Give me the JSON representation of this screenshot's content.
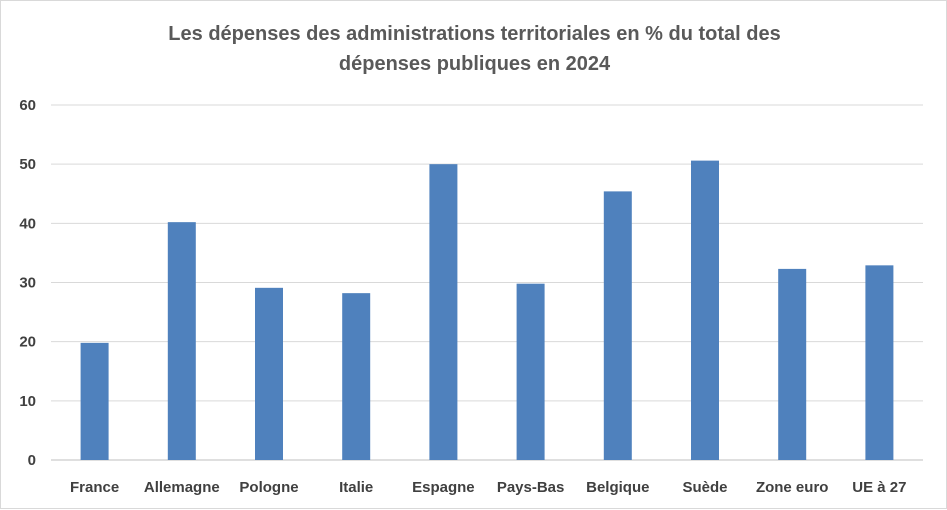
{
  "chart_data": {
    "type": "bar",
    "title_line1": "Les dépenses des administrations territoriales en % du total des",
    "title_line2": "dépenses publiques en 2024",
    "xlabel": "",
    "ylabel": "",
    "ylim": [
      0,
      60
    ],
    "yticks": [
      0,
      10,
      20,
      30,
      40,
      50,
      60
    ],
    "grid": true,
    "legend": "none",
    "bar_color": "#4f81bd",
    "categories": [
      "France",
      "Allemagne",
      "Pologne",
      "Italie",
      "Espagne",
      "Pays-Bas",
      "Belgique",
      "Suède",
      "Zone euro",
      "UE à 27"
    ],
    "values": [
      19.8,
      40.2,
      29.1,
      28.2,
      50.0,
      29.8,
      45.4,
      50.6,
      32.3,
      32.9
    ]
  }
}
